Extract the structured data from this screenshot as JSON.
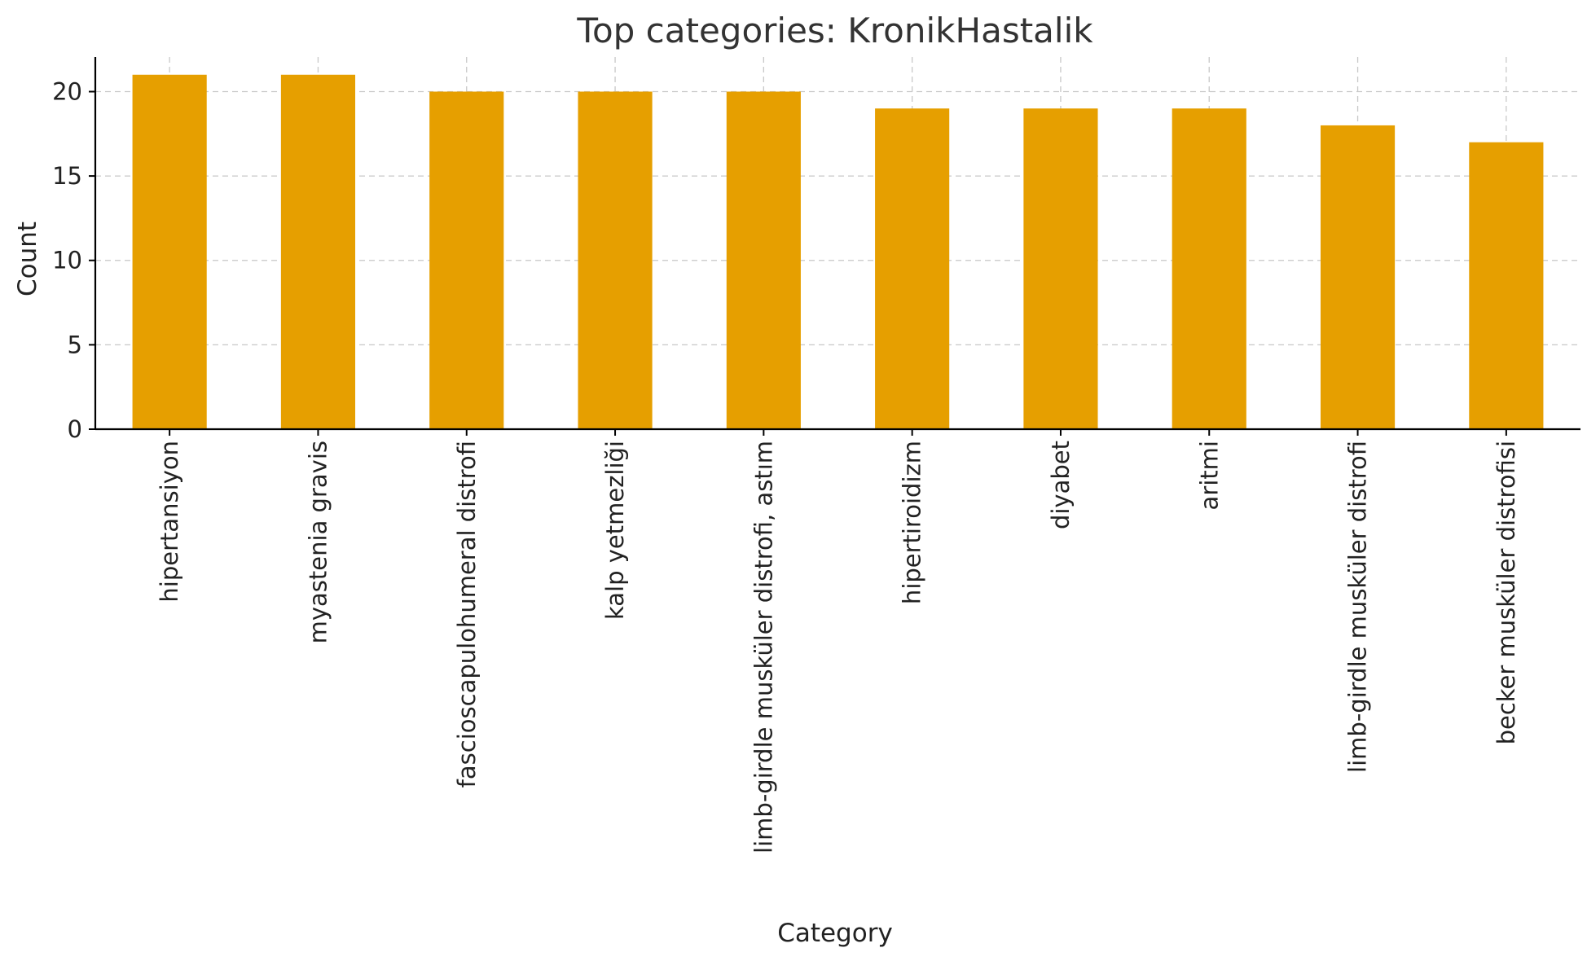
{
  "chart_data": {
    "type": "bar",
    "title": "Top categories: KronikHastalik",
    "xlabel": "Category",
    "ylabel": "Count",
    "categories": [
      "hipertansiyon",
      "myastenia gravis",
      "fascioscapulohumeral distrofi",
      "kalp yetmezliği",
      "limb-girdle musküler distrofi, astım",
      "hipertiroidizm",
      "diyabet",
      "aritmi",
      "limb-girdle musküler distrofi",
      "becker musküler distrofisi"
    ],
    "values": [
      21,
      21,
      20,
      20,
      20,
      19,
      19,
      19,
      18,
      17
    ],
    "ylim": [
      0,
      22.05
    ],
    "yticks": [
      0,
      5,
      10,
      15,
      20
    ],
    "grid": true,
    "bar_color": "#E69F00"
  }
}
